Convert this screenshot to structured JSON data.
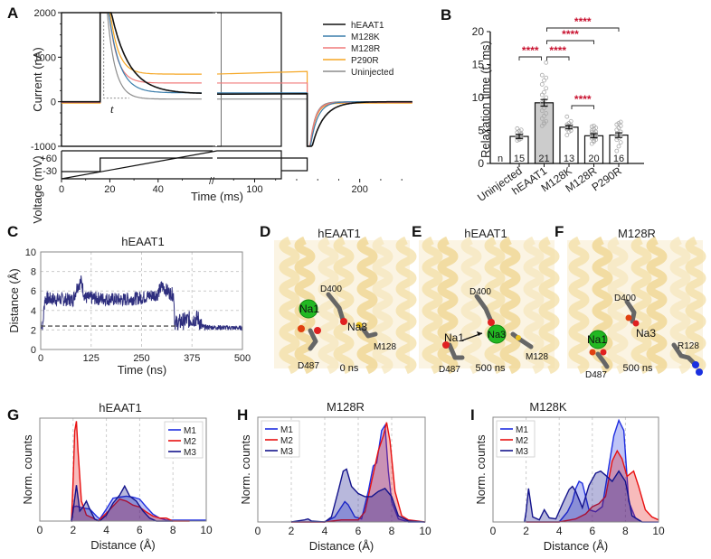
{
  "panels": {
    "A": "A",
    "B": "B",
    "C": "C",
    "D": "D",
    "E": "E",
    "F": "F",
    "G": "G",
    "H": "H",
    "I": "I"
  },
  "chart_data": [
    {
      "id": "A",
      "type": "line",
      "title": "",
      "xlabel": "Time (ms)",
      "ylabel_top": "Current (nA)",
      "ylabel_bottom": "Voltage (mV)",
      "x_ticks": [
        "0",
        "20",
        "40",
        "100",
        "200"
      ],
      "y_ticks_top": [
        "2000",
        "1000",
        "0",
        "-1000"
      ],
      "y_ticks_bottom": [
        "+60",
        "-30"
      ],
      "ylim_top": [
        -1000,
        2000
      ],
      "axis_break": "//",
      "annotation": "t",
      "legend": [
        "hEAAT1",
        "M128K",
        "M128R",
        "P290R",
        "Uninjected"
      ],
      "colors": {
        "hEAAT1": "#111111",
        "M128K": "#3a7dab",
        "M128R": "#f07b7b",
        "P290R": "#f5a623",
        "Uninjected": "#8c8c8c"
      },
      "steady_state_nA": {
        "hEAAT1": 180,
        "M128K": 200,
        "M128R": 420,
        "P290R": 620,
        "Uninjected": 60
      },
      "relaxation_tau_ms": {
        "hEAAT1": 9.2,
        "M128K": 5.5,
        "M128R": 4.2,
        "P290R": 4.3,
        "Uninjected": 4.1
      },
      "voltage_protocol_mV": {
        "hold": -30,
        "step": 60,
        "step_on_ms": 16,
        "step_off_ms": 150
      }
    },
    {
      "id": "B",
      "type": "bar",
      "ylabel": "Relaxation time (t, ms)",
      "ylim": [
        0,
        20
      ],
      "y_ticks": [
        "0",
        "5",
        "10",
        "15",
        "20"
      ],
      "categories": [
        "Uninjected",
        "hEAAT1",
        "M128K",
        "M128R",
        "P290R"
      ],
      "values": [
        4.1,
        9.2,
        5.5,
        4.2,
        4.3
      ],
      "errors": [
        0.3,
        0.5,
        0.25,
        0.3,
        0.35
      ],
      "n_label": "n",
      "n": [
        "15",
        "21",
        "13",
        "20",
        "16"
      ],
      "fills": [
        "#ffffff",
        "#cccccc",
        "#ffffff",
        "#ffffff",
        "#ffffff"
      ],
      "points": [
        [
          3.5,
          3.7,
          3.8,
          3.9,
          4.0,
          4.1,
          4.2,
          4.3,
          4.5,
          4.7,
          4.9,
          5.1,
          5.3,
          3.6,
          4.4
        ],
        [
          5.7,
          6.0,
          6.4,
          6.8,
          7.2,
          7.6,
          8.0,
          8.4,
          8.8,
          9.2,
          9.6,
          10.0,
          10.4,
          10.8,
          11.4,
          12.0,
          12.6,
          13.0,
          13.4,
          6.2,
          15.3
        ],
        [
          4.3,
          4.8,
          5.0,
          5.2,
          5.4,
          5.5,
          5.6,
          5.7,
          5.8,
          5.9,
          6.1,
          6.4,
          7.1
        ],
        [
          3.0,
          3.3,
          3.6,
          3.8,
          3.9,
          4.0,
          4.1,
          4.2,
          4.3,
          4.4,
          4.6,
          4.8,
          5.0,
          5.2,
          5.4,
          5.6,
          3.5,
          4.5,
          4.7,
          5.7
        ],
        [
          1.9,
          2.6,
          3.2,
          3.6,
          3.9,
          4.1,
          4.3,
          4.5,
          4.8,
          5.1,
          5.4,
          5.7,
          5.9,
          6.1,
          6.3,
          4.0
        ]
      ],
      "significance": [
        {
          "from": "Uninjected",
          "to": "hEAAT1",
          "label": "****"
        },
        {
          "from": "hEAAT1",
          "to": "M128K",
          "label": "****"
        },
        {
          "from": "hEAAT1",
          "to": "M128R",
          "label": "****"
        },
        {
          "from": "hEAAT1",
          "to": "P290R",
          "label": "****"
        },
        {
          "from": "M128K",
          "to": "M128R",
          "label": "****"
        }
      ]
    },
    {
      "id": "C",
      "type": "line",
      "title": "hEAAT1",
      "xlabel": "Time (ns)",
      "ylabel": "Distance (Å)",
      "xlim": [
        0,
        500
      ],
      "ylim": [
        0,
        10
      ],
      "x_ticks": [
        "0",
        "125",
        "250",
        "375",
        "500"
      ],
      "y_ticks": [
        "0",
        "2",
        "4",
        "6",
        "8",
        "10"
      ],
      "grid": true,
      "reference_line": 2.4,
      "color": "#2e2e7e",
      "segments_ns_A": [
        [
          0,
          2.8
        ],
        [
          5,
          2.3
        ],
        [
          10,
          5.2
        ],
        [
          80,
          5.1
        ],
        [
          90,
          6.4
        ],
        [
          100,
          7.0
        ],
        [
          110,
          5.3
        ],
        [
          200,
          5.1
        ],
        [
          250,
          5.3
        ],
        [
          290,
          5.7
        ],
        [
          300,
          6.5
        ],
        [
          320,
          5.8
        ],
        [
          330,
          5.6
        ],
        [
          332,
          2.6
        ],
        [
          360,
          3.0
        ],
        [
          390,
          3.2
        ],
        [
          400,
          2.3
        ],
        [
          500,
          2.2
        ]
      ]
    },
    {
      "id": "G",
      "type": "area",
      "title": "hEAAT1",
      "xlabel": "Distance (Å)",
      "ylabel": "Norm. counts",
      "xlim": [
        0,
        10
      ],
      "x_ticks": [
        "0",
        "2",
        "4",
        "6",
        "8",
        "10"
      ],
      "legend": [
        "M1",
        "M2",
        "M3"
      ],
      "series": [
        {
          "name": "M1",
          "color": "#1f2ee0",
          "x": [
            1.9,
            2.0,
            2.2,
            2.6,
            3.0,
            3.4,
            3.6,
            4.0,
            4.4,
            4.8,
            5.2,
            5.6,
            6.0,
            6.4,
            6.8,
            7.2,
            7.6,
            8.0,
            9.0,
            10.0
          ],
          "y": [
            0,
            0.14,
            0.15,
            0.13,
            0.12,
            0.05,
            0.02,
            0.12,
            0.23,
            0.24,
            0.25,
            0.24,
            0.22,
            0.14,
            0.07,
            0.03,
            0.01,
            0.01,
            0.01,
            0.01
          ]
        },
        {
          "name": "M2",
          "color": "#e81010",
          "x": [
            1.9,
            2.0,
            2.1,
            2.2,
            2.3,
            2.5,
            2.8,
            3.2,
            3.5,
            4.0,
            4.4,
            4.8,
            5.2,
            5.6,
            6.0,
            6.4,
            6.8,
            7.2,
            7.6,
            8.0,
            9.0
          ],
          "y": [
            0,
            0.4,
            0.9,
            1.0,
            0.7,
            0.2,
            0.06,
            0.03,
            0.0,
            0.08,
            0.15,
            0.22,
            0.2,
            0.16,
            0.14,
            0.09,
            0.05,
            0.03,
            0.03,
            0.0,
            0.0
          ]
        },
        {
          "name": "M3",
          "color": "#14148c",
          "x": [
            1.9,
            2.0,
            2.2,
            2.4,
            2.6,
            2.8,
            3.0,
            3.3,
            3.6,
            4.0,
            4.4,
            4.8,
            5.1,
            5.4,
            5.8,
            6.2,
            6.6,
            7.0,
            8.0
          ],
          "y": [
            0,
            0.1,
            0.36,
            0.1,
            0.14,
            0.2,
            0.12,
            0.02,
            0.0,
            0.06,
            0.18,
            0.26,
            0.35,
            0.25,
            0.2,
            0.1,
            0.03,
            0.0,
            0.0
          ]
        }
      ]
    },
    {
      "id": "H",
      "type": "area",
      "title": "M128R",
      "xlabel": "Distance (Å)",
      "ylabel": "Norm. counts",
      "xlim": [
        0,
        10
      ],
      "x_ticks": [
        "0",
        "2",
        "4",
        "6",
        "8",
        "10"
      ],
      "legend": [
        "M1",
        "M2",
        "M3"
      ],
      "series": [
        {
          "name": "M1",
          "color": "#1f2ee0",
          "x": [
            2.0,
            4.0,
            4.6,
            5.0,
            5.2,
            5.4,
            5.8,
            6.2,
            6.6,
            6.9,
            7.1,
            7.4,
            7.6,
            7.8,
            8.0,
            8.4,
            9.0,
            10.0
          ],
          "y": [
            0,
            0.0,
            0.05,
            0.15,
            0.2,
            0.17,
            0.05,
            0.03,
            0.3,
            0.55,
            0.58,
            0.9,
            0.95,
            0.5,
            0.2,
            0.03,
            0.0,
            0.0
          ]
        },
        {
          "name": "M2",
          "color": "#e81010",
          "x": [
            2.0,
            4.0,
            5.0,
            6.0,
            6.4,
            6.8,
            7.2,
            7.5,
            7.7,
            7.9,
            8.2,
            8.6,
            9.0,
            10.0
          ],
          "y": [
            0,
            0.0,
            0.02,
            0.02,
            0.1,
            0.4,
            0.7,
            0.85,
            0.98,
            0.8,
            0.3,
            0.06,
            0.02,
            0.0
          ]
        },
        {
          "name": "M3",
          "color": "#14148c",
          "x": [
            2.0,
            2.8,
            3.0,
            3.2,
            4.0,
            4.4,
            4.8,
            5.1,
            5.3,
            5.6,
            6.0,
            6.4,
            6.8,
            7.2,
            7.6,
            8.0,
            8.4,
            9.0,
            10.0
          ],
          "y": [
            0,
            0.02,
            0.03,
            0.01,
            0.0,
            0.05,
            0.3,
            0.5,
            0.52,
            0.35,
            0.28,
            0.25,
            0.25,
            0.3,
            0.33,
            0.25,
            0.06,
            0.01,
            0.0
          ]
        }
      ]
    },
    {
      "id": "I",
      "type": "area",
      "title": "M128K",
      "xlabel": "Distance (Å)",
      "ylabel": "Norm. counts",
      "xlim": [
        0,
        10
      ],
      "x_ticks": [
        "0",
        "2",
        "4",
        "6",
        "8",
        "10"
      ],
      "legend": [
        "M1",
        "M2",
        "M3"
      ],
      "series": [
        {
          "name": "M1",
          "color": "#1f2ee0",
          "x": [
            2.0,
            4.0,
            4.5,
            4.8,
            5.0,
            5.2,
            5.4,
            5.8,
            6.2,
            6.6,
            7.0,
            7.3,
            7.6,
            7.9,
            8.2,
            8.6,
            9.0,
            10.0
          ],
          "y": [
            0,
            0.0,
            0.1,
            0.2,
            0.33,
            0.4,
            0.38,
            0.12,
            0.1,
            0.15,
            0.55,
            0.85,
            1.0,
            0.9,
            0.2,
            0.04,
            0.0,
            0.0
          ]
        },
        {
          "name": "M2",
          "color": "#e81010",
          "x": [
            2.0,
            4.0,
            5.0,
            5.6,
            6.0,
            6.4,
            6.8,
            7.2,
            7.5,
            7.8,
            8.1,
            8.5,
            8.8,
            9.2,
            9.6,
            10.0
          ],
          "y": [
            0,
            0.0,
            0.03,
            0.08,
            0.15,
            0.18,
            0.25,
            0.6,
            0.7,
            0.62,
            0.45,
            0.5,
            0.35,
            0.12,
            0.05,
            0.02
          ]
        },
        {
          "name": "M3",
          "color": "#14148c",
          "x": [
            1.9,
            2.0,
            2.15,
            2.4,
            2.8,
            3.1,
            3.4,
            3.8,
            4.2,
            4.6,
            4.8,
            5.0,
            5.4,
            5.8,
            6.2,
            6.5,
            6.8,
            7.2,
            7.6,
            8.0,
            8.4,
            9.0
          ],
          "y": [
            0,
            0.1,
            0.33,
            0.05,
            0.02,
            0.12,
            0.04,
            0.03,
            0.18,
            0.32,
            0.35,
            0.3,
            0.14,
            0.36,
            0.48,
            0.5,
            0.46,
            0.4,
            0.5,
            0.4,
            0.06,
            0.0
          ]
        }
      ]
    }
  ],
  "structures": {
    "D": {
      "title": "hEAAT1",
      "caption": "0 ns",
      "labels": [
        "D400",
        "Na3",
        "Na1",
        "M128",
        "D487"
      ]
    },
    "E": {
      "title": "hEAAT1",
      "caption": "500 ns",
      "labels": [
        "D400",
        "Na1",
        "Na3",
        "M128",
        "D487"
      ]
    },
    "F": {
      "title": "M128R",
      "caption": "500 ns",
      "labels": [
        "D400",
        "Na3",
        "Na1",
        "R128",
        "D487"
      ]
    }
  }
}
